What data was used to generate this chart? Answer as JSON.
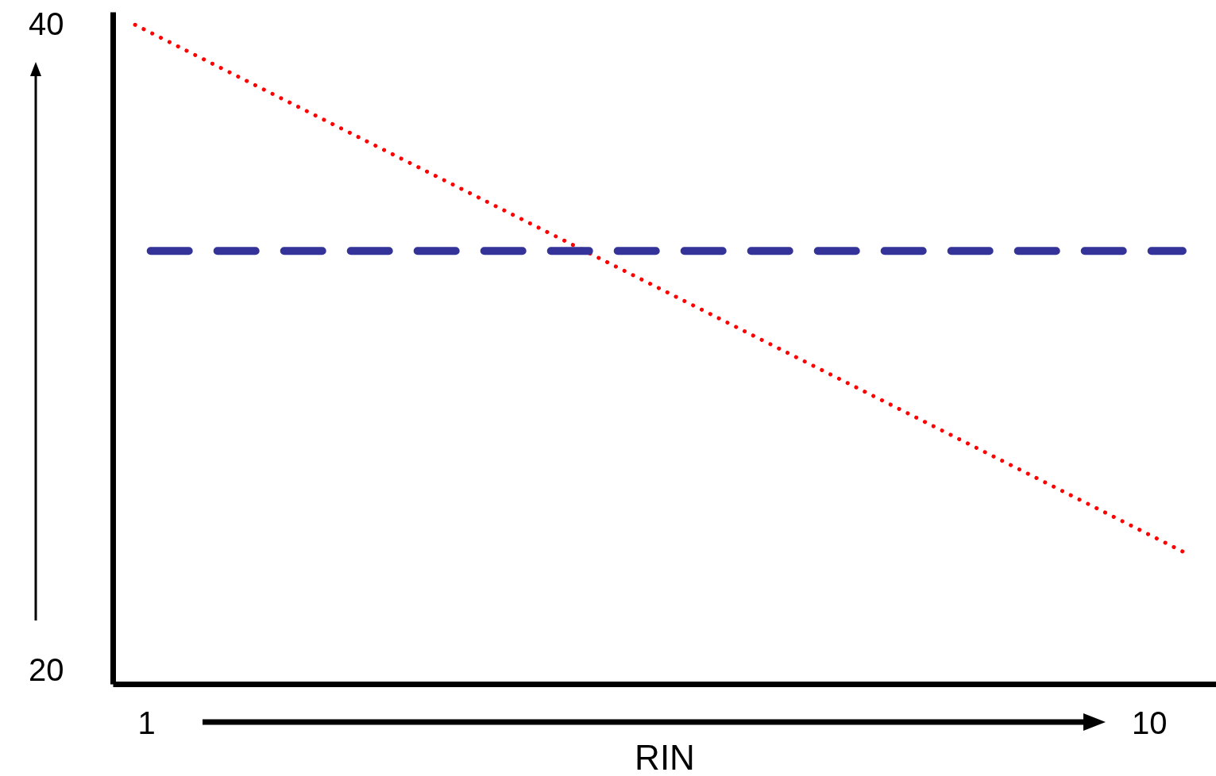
{
  "chart_data": {
    "type": "line",
    "xlabel": "RIN",
    "xlim": [
      0.7,
      10.6
    ],
    "ylim": [
      19.6,
      40.4
    ],
    "xticks": [
      1,
      10
    ],
    "yticks": [
      20,
      40
    ],
    "grid": false,
    "marker": "none",
    "series": [
      {
        "color": "#ff0000",
        "line_style": "dotted",
        "x": [
          0.9,
          10.3
        ],
        "values": [
          40,
          23.7
        ]
      },
      {
        "color": "#333399",
        "line_style": "dashed",
        "x": [
          1.04,
          10.3
        ],
        "values": [
          33,
          33
        ]
      }
    ]
  }
}
